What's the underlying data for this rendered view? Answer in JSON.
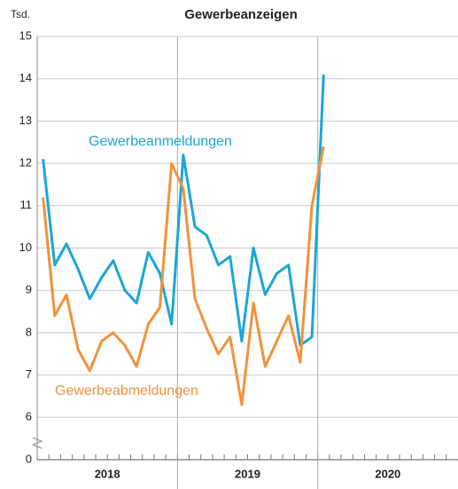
{
  "chart_data": {
    "type": "line",
    "title": "Gewerbeanzeigen",
    "y_label": "Tsd.",
    "categories": [
      null,
      null,
      null,
      null,
      null,
      null,
      null,
      null,
      null,
      null,
      null,
      null,
      null,
      null,
      null,
      null,
      null,
      null,
      null,
      null,
      null,
      null,
      null,
      null,
      null,
      null,
      null,
      null,
      null,
      null,
      null,
      null,
      null,
      null,
      null,
      null
    ],
    "x_groups": [
      {
        "label": "2018",
        "span": 12
      },
      {
        "label": "2019",
        "span": 12
      },
      {
        "label": "2020",
        "span": 12
      }
    ],
    "series": [
      {
        "name": "Gewerbeanmeldungen",
        "color": "#1ba6d6",
        "values": [
          12.1,
          9.6,
          10.1,
          9.5,
          8.8,
          9.3,
          9.7,
          9.0,
          8.7,
          9.9,
          9.4,
          8.2,
          12.2,
          10.5,
          10.3,
          9.6,
          9.8,
          7.8,
          10.0,
          8.9,
          9.4,
          9.6,
          7.7,
          7.9,
          14.1,
          null,
          null,
          null,
          null,
          null,
          null,
          null,
          null,
          null,
          null,
          null
        ]
      },
      {
        "name": "Gewerbeabmeldungen",
        "color": "#f0923c",
        "values": [
          11.2,
          8.4,
          8.9,
          7.6,
          7.1,
          7.8,
          8.0,
          7.7,
          7.2,
          8.2,
          8.6,
          12.0,
          11.4,
          8.8,
          8.1,
          7.5,
          7.9,
          6.3,
          8.7,
          7.2,
          7.8,
          8.4,
          7.3,
          11.0,
          12.4,
          null,
          null,
          null,
          null,
          null,
          null,
          null,
          null,
          null,
          null,
          null
        ]
      }
    ],
    "ylim": [
      0,
      15
    ],
    "axis_break": {
      "from": 0,
      "to": 5
    },
    "yticks": [
      0,
      6,
      7,
      8,
      9,
      10,
      11,
      12,
      13,
      14,
      15
    ],
    "grid": true
  }
}
